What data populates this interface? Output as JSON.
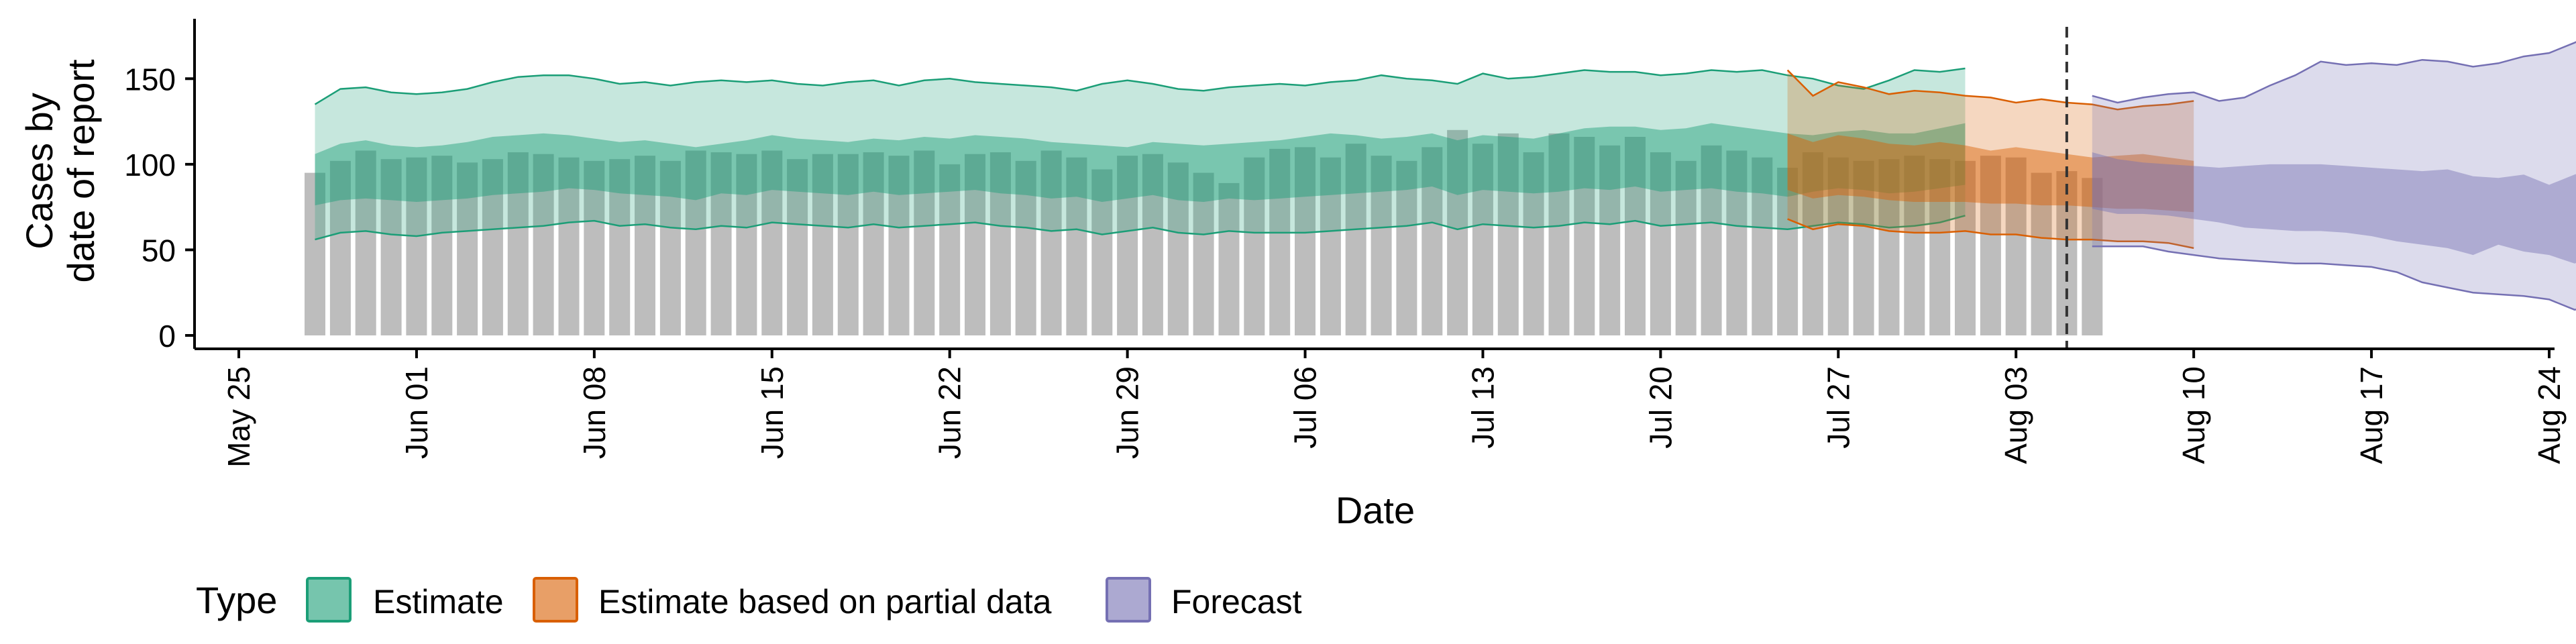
{
  "chart_data": {
    "type": "bar",
    "xlabel": "Date",
    "ylabel_line1": "Cases by",
    "ylabel_line2": "date of report",
    "x_axis": {
      "start": "2020-05-25",
      "end": "2020-08-24",
      "ticks": [
        "May 25",
        "Jun 01",
        "Jun 08",
        "Jun 15",
        "Jun 22",
        "Jun 29",
        "Jul 06",
        "Jul 13",
        "Jul 20",
        "Jul 27",
        "Aug 03",
        "Aug 10",
        "Aug 17",
        "Aug 24"
      ]
    },
    "y_axis": {
      "ylim": [
        0,
        185
      ],
      "ticks": [
        0,
        50,
        100,
        150
      ]
    },
    "grid": false,
    "legend": {
      "title": "Type",
      "placement": "bottom",
      "entries": [
        {
          "label": "Estimate",
          "color": "#1b9e77"
        },
        {
          "label": "Estimate based on partial data",
          "color": "#d95f02"
        },
        {
          "label": "Forecast",
          "color": "#7570b3"
        }
      ]
    },
    "vline_date": "2020-08-05",
    "reported_cases": {
      "start_date": "2020-05-28",
      "color": "#bdbdbd",
      "values": [
        95,
        102,
        108,
        103,
        104,
        105,
        101,
        103,
        107,
        106,
        104,
        102,
        103,
        105,
        102,
        108,
        107,
        106,
        108,
        103,
        106,
        106,
        107,
        105,
        108,
        100,
        106,
        107,
        102,
        108,
        104,
        97,
        105,
        106,
        101,
        95,
        89,
        104,
        109,
        110,
        104,
        112,
        105,
        102,
        110,
        120,
        112,
        118,
        107,
        118,
        116,
        111,
        116,
        107,
        102,
        111,
        108,
        104,
        98,
        107,
        104,
        102,
        103,
        105,
        103,
        102,
        105,
        104,
        95,
        96,
        92
      ]
    },
    "series": [
      {
        "name": "Estimate",
        "start_date": "2020-05-28",
        "color": "#1b9e77",
        "lower_90": [
          56,
          60,
          61,
          59,
          58,
          60,
          61,
          62,
          63,
          64,
          66,
          67,
          64,
          65,
          63,
          62,
          64,
          63,
          66,
          65,
          64,
          63,
          65,
          63,
          64,
          65,
          66,
          64,
          63,
          61,
          62,
          59,
          61,
          63,
          60,
          59,
          61,
          60,
          60,
          60,
          61,
          62,
          63,
          64,
          66,
          62,
          65,
          64,
          63,
          64,
          66,
          65,
          67,
          64,
          65,
          66,
          64,
          63,
          62,
          64,
          66,
          65,
          63,
          64,
          66,
          70
        ],
        "lower_50": [
          76,
          79,
          80,
          79,
          78,
          79,
          80,
          82,
          83,
          84,
          86,
          85,
          83,
          82,
          81,
          79,
          83,
          82,
          85,
          84,
          83,
          82,
          84,
          82,
          83,
          84,
          85,
          83,
          82,
          80,
          81,
          78,
          80,
          82,
          79,
          78,
          80,
          79,
          80,
          81,
          82,
          83,
          84,
          85,
          87,
          82,
          85,
          84,
          83,
          84,
          86,
          85,
          87,
          84,
          85,
          86,
          84,
          83,
          81,
          84,
          86,
          85,
          83,
          84,
          86,
          88
        ],
        "upper_50": [
          106,
          112,
          114,
          111,
          110,
          111,
          113,
          116,
          117,
          118,
          117,
          115,
          113,
          114,
          112,
          110,
          112,
          114,
          117,
          115,
          114,
          113,
          115,
          114,
          116,
          115,
          117,
          116,
          115,
          113,
          112,
          111,
          110,
          113,
          112,
          111,
          112,
          113,
          114,
          116,
          118,
          117,
          115,
          116,
          118,
          114,
          117,
          116,
          115,
          118,
          121,
          122,
          122,
          120,
          121,
          124,
          122,
          120,
          118,
          117,
          119,
          120,
          118,
          118,
          121,
          124
        ],
        "upper_90": [
          135,
          144,
          145,
          142,
          141,
          142,
          144,
          148,
          151,
          152,
          152,
          150,
          147,
          148,
          146,
          148,
          149,
          148,
          149,
          147,
          146,
          148,
          149,
          146,
          149,
          150,
          148,
          147,
          146,
          145,
          143,
          147,
          149,
          147,
          144,
          143,
          145,
          146,
          147,
          146,
          148,
          149,
          152,
          150,
          149,
          147,
          153,
          150,
          151,
          153,
          155,
          154,
          154,
          152,
          153,
          155,
          154,
          155,
          152,
          150,
          146,
          144,
          149,
          155,
          154,
          156
        ]
      },
      {
        "name": "Estimate based on partial data",
        "start_date": "2020-07-25",
        "color": "#d95f02",
        "lower_90": [
          68,
          62,
          65,
          64,
          61,
          60,
          60,
          61,
          59,
          59,
          57,
          56,
          56,
          55,
          55,
          54,
          51
        ],
        "lower_50": [
          85,
          80,
          82,
          81,
          79,
          78,
          78,
          78,
          77,
          77,
          76,
          76,
          75,
          74,
          74,
          73,
          72
        ],
        "upper_50": [
          118,
          113,
          117,
          115,
          112,
          111,
          113,
          111,
          108,
          110,
          108,
          106,
          104,
          105,
          106,
          104,
          102
        ],
        "upper_90": [
          155,
          140,
          148,
          145,
          141,
          143,
          142,
          140,
          139,
          136,
          138,
          136,
          135,
          132,
          134,
          135,
          137
        ]
      },
      {
        "name": "Forecast",
        "start_date": "2020-08-06",
        "color": "#7570b3",
        "lower_90": [
          52,
          52,
          52,
          49,
          47,
          45,
          44,
          43,
          42,
          42,
          41,
          40,
          37,
          31,
          28,
          25,
          24,
          23,
          21,
          15,
          17
        ],
        "lower_50": [
          74,
          71,
          71,
          70,
          68,
          66,
          63,
          62,
          61,
          61,
          60,
          58,
          55,
          53,
          51,
          47,
          53,
          49,
          47,
          42,
          47
        ],
        "upper_50": [
          107,
          103,
          101,
          100,
          99,
          98,
          99,
          100,
          100,
          100,
          99,
          98,
          97,
          96,
          97,
          93,
          92,
          94,
          88,
          94,
          99
        ],
        "upper_90": [
          140,
          136,
          139,
          141,
          142,
          137,
          139,
          146,
          152,
          160,
          158,
          159,
          158,
          161,
          160,
          157,
          159,
          163,
          165,
          171,
          178
        ]
      }
    ]
  }
}
